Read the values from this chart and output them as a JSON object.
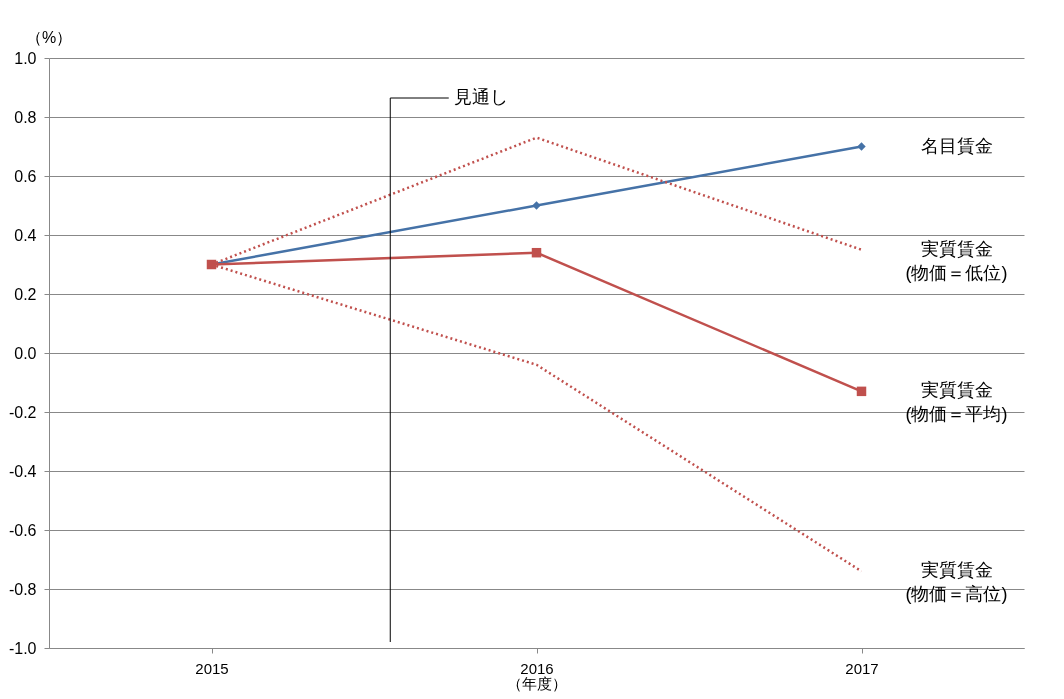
{
  "chart_data": {
    "type": "line",
    "ylabel": "（%）",
    "xlabel": "（年度）",
    "x": [
      2015,
      2016,
      2017
    ],
    "xlim": [
      2014.5,
      2017.5
    ],
    "xticks": [
      2015,
      2016,
      2017
    ],
    "ylim": [
      -1,
      1
    ],
    "yticks": [
      {
        "value": -1,
        "label": "-1.0"
      },
      {
        "value": -0.8,
        "label": "-0.8"
      },
      {
        "value": -0.6,
        "label": "-0.6"
      },
      {
        "value": -0.4,
        "label": "-0.4"
      },
      {
        "value": -0.2,
        "label": "-0.2"
      },
      {
        "value": 0,
        "label": "0.0"
      },
      {
        "value": 0.2,
        "label": "0.2"
      },
      {
        "value": 0.4,
        "label": "0.4"
      },
      {
        "value": 0.6,
        "label": "0.6"
      },
      {
        "value": 0.8,
        "label": "0.8"
      },
      {
        "value": 1,
        "label": "1.0"
      }
    ],
    "grid": "y",
    "series": [
      {
        "name": "名目賃金",
        "color": "#4572a7",
        "values": [
          0.3,
          0.5,
          0.7
        ],
        "marker": "diamond",
        "line_style": "solid"
      },
      {
        "name": "実質賃金\n(物価＝低位)",
        "color": "#c0504d",
        "values": [
          0.3,
          0.73,
          0.35
        ],
        "marker": "none",
        "line_style": "dotted"
      },
      {
        "name": "実質賃金\n(物価＝平均)",
        "color": "#c0504d",
        "values": [
          0.3,
          0.34,
          -0.13
        ],
        "marker": "square",
        "line_style": "solid"
      },
      {
        "name": "実質賃金\n(物価＝高位)",
        "color": "#c0504d",
        "values": [
          0.3,
          -0.04,
          -0.74
        ],
        "marker": "none",
        "line_style": "dotted"
      }
    ],
    "ref_lines": [
      {
        "axis": "x",
        "value": 2015.55,
        "label": "見通し",
        "color": "#000000"
      }
    ]
  }
}
